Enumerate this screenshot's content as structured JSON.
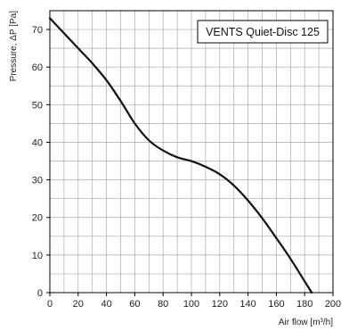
{
  "chart_data": {
    "type": "line",
    "title": "",
    "legend": "VENTS Quiet-Disc 125",
    "legend_position": "top-right",
    "xlabel": "Air flow [m³/h]",
    "ylabel": "Pressure, ΔP [Pa]",
    "xlim": [
      0,
      200
    ],
    "ylim": [
      0,
      75
    ],
    "grid": true,
    "x_minor_step": 10,
    "y_minor_step": 5,
    "x_ticks": [
      0,
      20,
      40,
      60,
      80,
      100,
      120,
      140,
      160,
      180,
      200
    ],
    "y_ticks": [
      0,
      10,
      20,
      30,
      40,
      50,
      60,
      70
    ],
    "series": [
      {
        "name": "VENTS Quiet-Disc 125",
        "color": "#111111",
        "x": [
          0,
          10,
          20,
          30,
          40,
          50,
          60,
          70,
          80,
          90,
          100,
          110,
          120,
          130,
          140,
          150,
          160,
          170,
          180,
          185
        ],
        "y": [
          73,
          69,
          65,
          61,
          56.5,
          51,
          45,
          40.5,
          37.8,
          36,
          35,
          33.5,
          31.5,
          28.5,
          24.5,
          19.8,
          14.5,
          9,
          3,
          0
        ]
      }
    ]
  }
}
